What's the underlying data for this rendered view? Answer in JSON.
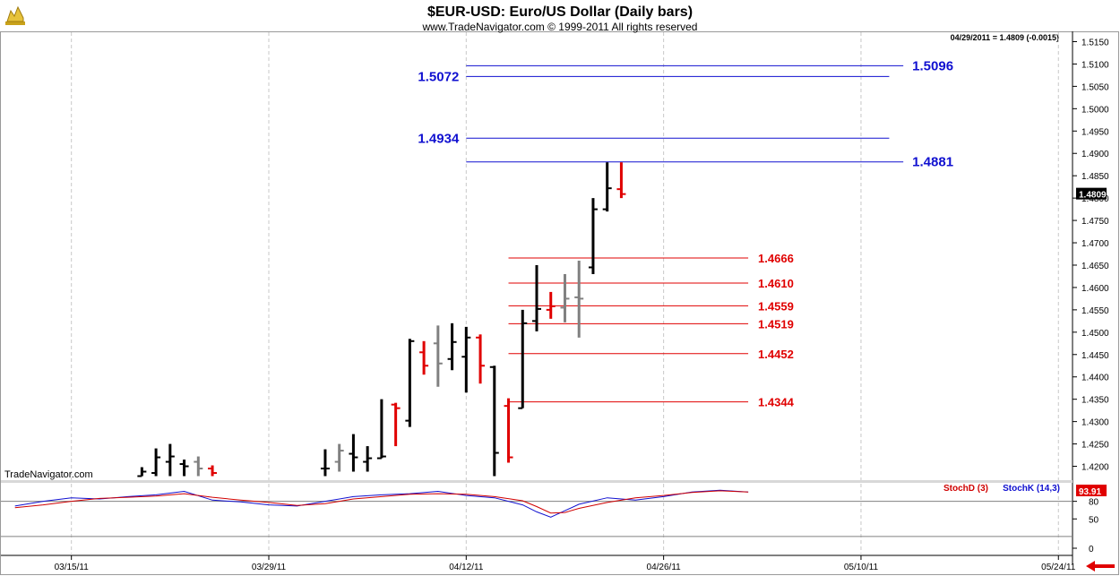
{
  "header": {
    "title": "$EUR-USD:  Euro/US Dollar  (Daily bars)",
    "subtitle": "www.TradeNavigator.com © 1999-2011 All rights reserved",
    "quote": "04/29/2011 = 1.4809 (-0.0015)",
    "watermark": "TradeNavigator.com"
  },
  "colors": {
    "up_bar": "#000000",
    "down_bar": "#e00000",
    "neutral_bar": "#808080",
    "fib_blue": "#1010d0",
    "fib_red": "#e00000",
    "stoch_d": "#d00000",
    "stoch_k": "#1010d0",
    "logo": "#d4b020",
    "nav_arrow": "#e00000"
  },
  "icons": {
    "logo": "gold-chart-logo-icon",
    "nav": "red-left-arrow-icon"
  },
  "chart_data": {
    "type": "ohlc",
    "price_axis": {
      "ylim": [
        1.4177,
        1.5163
      ],
      "ticks": [
        "1.5150",
        "1.5100",
        "1.5050",
        "1.5000",
        "1.4950",
        "1.4900",
        "1.4850",
        "1.4800",
        "1.4750",
        "1.4700",
        "1.4650",
        "1.4600",
        "1.4550",
        "1.4500",
        "1.4450",
        "1.4400",
        "1.4350",
        "1.4300",
        "1.4250",
        "1.4200"
      ],
      "last_price_label": "1.4809"
    },
    "x_axis": {
      "day_range": [
        -5,
        71
      ],
      "date_labels": [
        {
          "day": 0,
          "label": "03/15/11"
        },
        {
          "day": 14,
          "label": "03/29/11"
        },
        {
          "day": 28,
          "label": "04/12/11"
        },
        {
          "day": 42,
          "label": "04/26/11"
        },
        {
          "day": 56,
          "label": "05/10/11"
        },
        {
          "day": 70,
          "label": "05/24/11"
        }
      ]
    },
    "bars": [
      {
        "day": 5,
        "o": 1.4178,
        "h": 1.4198,
        "l": 1.4178,
        "c": 1.4188,
        "color": "up"
      },
      {
        "day": 6,
        "o": 1.4185,
        "h": 1.424,
        "l": 1.4178,
        "c": 1.422,
        "color": "up"
      },
      {
        "day": 7,
        "o": 1.421,
        "h": 1.425,
        "l": 1.4178,
        "c": 1.4222,
        "color": "up"
      },
      {
        "day": 8,
        "o": 1.4205,
        "h": 1.4215,
        "l": 1.4178,
        "c": 1.42,
        "color": "up"
      },
      {
        "day": 9,
        "o": 1.421,
        "h": 1.4222,
        "l": 1.4178,
        "c": 1.4195,
        "color": "neutral"
      },
      {
        "day": 10,
        "o": 1.4195,
        "h": 1.4202,
        "l": 1.4178,
        "c": 1.4185,
        "color": "down"
      },
      {
        "day": 18,
        "o": 1.4195,
        "h": 1.4238,
        "l": 1.4178,
        "c": 1.4195,
        "color": "up"
      },
      {
        "day": 19,
        "o": 1.421,
        "h": 1.425,
        "l": 1.4188,
        "c": 1.4235,
        "color": "neutral"
      },
      {
        "day": 20,
        "o": 1.4228,
        "h": 1.4272,
        "l": 1.4188,
        "c": 1.422,
        "color": "up"
      },
      {
        "day": 21,
        "o": 1.421,
        "h": 1.4245,
        "l": 1.4188,
        "c": 1.4218,
        "color": "up"
      },
      {
        "day": 22,
        "o": 1.4218,
        "h": 1.435,
        "l": 1.4218,
        "c": 1.4222,
        "color": "up"
      },
      {
        "day": 23,
        "o": 1.4338,
        "h": 1.4342,
        "l": 1.4245,
        "c": 1.433,
        "color": "down"
      },
      {
        "day": 24,
        "o": 1.4302,
        "h": 1.4485,
        "l": 1.4288,
        "c": 1.448,
        "color": "up"
      },
      {
        "day": 25,
        "o": 1.4455,
        "h": 1.448,
        "l": 1.4405,
        "c": 1.4425,
        "color": "down"
      },
      {
        "day": 26,
        "o": 1.4475,
        "h": 1.4515,
        "l": 1.4378,
        "c": 1.443,
        "color": "neutral"
      },
      {
        "day": 27,
        "o": 1.444,
        "h": 1.452,
        "l": 1.4415,
        "c": 1.4478,
        "color": "up"
      },
      {
        "day": 28,
        "o": 1.4445,
        "h": 1.4512,
        "l": 1.4365,
        "c": 1.4488,
        "color": "up"
      },
      {
        "day": 29,
        "o": 1.4488,
        "h": 1.4495,
        "l": 1.4385,
        "c": 1.4425,
        "color": "down"
      },
      {
        "day": 30,
        "o": 1.4422,
        "h": 1.4425,
        "l": 1.4178,
        "c": 1.423,
        "color": "up"
      },
      {
        "day": 31,
        "o": 1.4335,
        "h": 1.4352,
        "l": 1.4208,
        "c": 1.422,
        "color": "down"
      },
      {
        "day": 32,
        "o": 1.433,
        "h": 1.455,
        "l": 1.433,
        "c": 1.452,
        "color": "up"
      },
      {
        "day": 33,
        "o": 1.4525,
        "h": 1.465,
        "l": 1.4502,
        "c": 1.4552,
        "color": "up"
      },
      {
        "day": 34,
        "o": 1.455,
        "h": 1.459,
        "l": 1.453,
        "c": 1.4558,
        "color": "down"
      },
      {
        "day": 35,
        "o": 1.4555,
        "h": 1.463,
        "l": 1.4522,
        "c": 1.4575,
        "color": "neutral"
      },
      {
        "day": 36,
        "o": 1.4578,
        "h": 1.466,
        "l": 1.4488,
        "c": 1.4575,
        "color": "neutral"
      },
      {
        "day": 37,
        "o": 1.4645,
        "h": 1.48,
        "l": 1.463,
        "c": 1.4775,
        "color": "up"
      },
      {
        "day": 38,
        "o": 1.4775,
        "h": 1.488,
        "l": 1.477,
        "c": 1.4822,
        "color": "up"
      },
      {
        "day": 39,
        "o": 1.482,
        "h": 1.488,
        "l": 1.48,
        "c": 1.4809,
        "color": "down"
      }
    ],
    "fib_levels_blue": [
      {
        "price": 1.5096,
        "label": "1.5096",
        "day_start": 28,
        "day_end": 59,
        "label_side": "right"
      },
      {
        "price": 1.5072,
        "label": "1.5072",
        "day_start": 28,
        "day_end": 58,
        "label_side": "left"
      },
      {
        "price": 1.4934,
        "label": "1.4934",
        "day_start": 28,
        "day_end": 58,
        "label_side": "left"
      },
      {
        "price": 1.4881,
        "label": "1.4881",
        "day_start": 28,
        "day_end": 59,
        "label_side": "right"
      }
    ],
    "fib_levels_red": [
      {
        "price": 1.4666,
        "label": "1.4666",
        "day_start": 31,
        "day_end": 48
      },
      {
        "price": 1.461,
        "label": "1.4610",
        "day_start": 31,
        "day_end": 48
      },
      {
        "price": 1.4559,
        "label": "1.4559",
        "day_start": 31,
        "day_end": 48
      },
      {
        "price": 1.4519,
        "label": "1.4519",
        "day_start": 31,
        "day_end": 48
      },
      {
        "price": 1.4452,
        "label": "1.4452",
        "day_start": 31,
        "day_end": 48
      },
      {
        "price": 1.4344,
        "label": "1.4344",
        "day_start": 31,
        "day_end": 48
      }
    ],
    "oscillator": {
      "ylim": [
        0,
        110
      ],
      "ticks": [
        "80",
        "50",
        "0"
      ],
      "reference_lines": [
        80,
        20
      ],
      "legend_d": "StochD (3)",
      "legend_k": "StochK (14,3)",
      "current_value": "93.91",
      "stoch_d": [
        [
          -4,
          69
        ],
        [
          -2,
          74
        ],
        [
          0,
          80
        ],
        [
          2,
          85
        ],
        [
          4,
          87
        ],
        [
          6,
          89
        ],
        [
          8,
          93
        ],
        [
          10,
          87
        ],
        [
          12,
          82
        ],
        [
          14,
          78
        ],
        [
          16,
          73
        ],
        [
          18,
          76
        ],
        [
          20,
          84
        ],
        [
          22,
          88
        ],
        [
          24,
          92
        ],
        [
          26,
          93
        ],
        [
          28,
          92
        ],
        [
          30,
          88
        ],
        [
          32,
          81
        ],
        [
          33,
          71
        ],
        [
          34,
          60
        ],
        [
          35,
          61
        ],
        [
          36,
          68
        ],
        [
          38,
          78
        ],
        [
          40,
          86
        ],
        [
          42,
          90
        ],
        [
          44,
          95
        ],
        [
          46,
          98
        ],
        [
          48,
          96
        ]
      ],
      "stoch_k": [
        [
          -4,
          72
        ],
        [
          -2,
          80
        ],
        [
          0,
          86
        ],
        [
          2,
          84
        ],
        [
          4,
          88
        ],
        [
          6,
          91
        ],
        [
          8,
          97
        ],
        [
          10,
          82
        ],
        [
          12,
          79
        ],
        [
          14,
          74
        ],
        [
          16,
          72
        ],
        [
          18,
          80
        ],
        [
          20,
          88
        ],
        [
          22,
          91
        ],
        [
          24,
          93
        ],
        [
          26,
          97
        ],
        [
          28,
          90
        ],
        [
          30,
          86
        ],
        [
          32,
          74
        ],
        [
          33,
          62
        ],
        [
          34,
          53
        ],
        [
          35,
          64
        ],
        [
          36,
          75
        ],
        [
          38,
          86
        ],
        [
          40,
          82
        ],
        [
          42,
          88
        ],
        [
          44,
          96
        ],
        [
          46,
          99
        ],
        [
          48,
          96
        ]
      ]
    }
  }
}
